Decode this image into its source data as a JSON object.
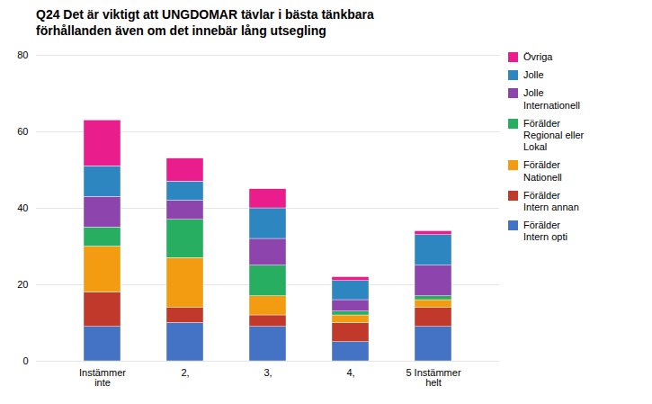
{
  "chart_data": {
    "type": "bar",
    "stacked": true,
    "title": "Q24 Det är viktigt att UNGDOMAR tävlar i bästa tänkbara\nförhållanden även om det innebär lång utsegling",
    "categories": [
      "Instämmer\ninte",
      "2,",
      "3,",
      "4,",
      "5 Instämmer\nhelt"
    ],
    "series": [
      {
        "name": "Förälder\nIntern opti",
        "color": "#4472C4",
        "values": [
          9,
          10,
          9,
          5,
          9
        ]
      },
      {
        "name": "Förälder\nIntern annan",
        "color": "#C0392B",
        "values": [
          9,
          4,
          3,
          5,
          5
        ]
      },
      {
        "name": "Förälder\nNationell",
        "color": "#F39C12",
        "values": [
          12,
          13,
          5,
          2,
          2
        ]
      },
      {
        "name": "Förälder\nRegional eller\nLokal",
        "color": "#27AE60",
        "values": [
          5,
          10,
          8,
          1,
          1
        ]
      },
      {
        "name": "Jolle\nInternationell",
        "color": "#8E44AD",
        "values": [
          8,
          5,
          7,
          3,
          8
        ]
      },
      {
        "name": "Jolle",
        "color": "#2E86C1",
        "values": [
          8,
          5,
          8,
          5,
          8
        ]
      },
      {
        "name": "Övriga",
        "color": "#E91E8C",
        "values": [
          12,
          6,
          5,
          1,
          1
        ]
      }
    ],
    "ylim": [
      0,
      80
    ],
    "yticks": [
      0,
      20,
      40,
      60,
      80
    ],
    "grid": true,
    "legend": "right"
  }
}
